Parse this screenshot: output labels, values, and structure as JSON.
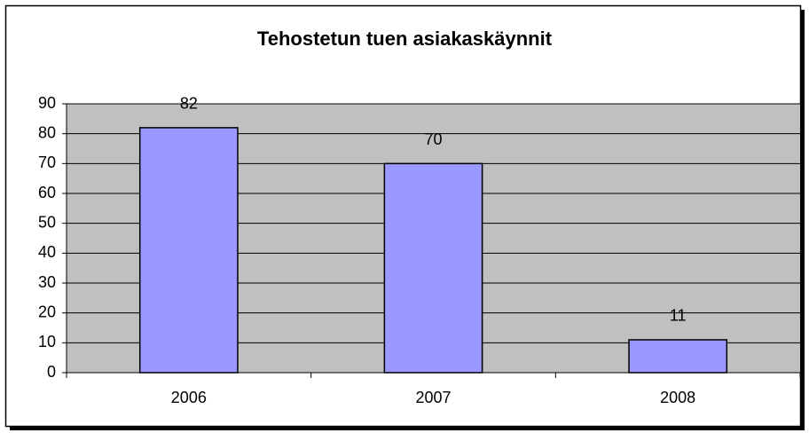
{
  "chart_data": {
    "type": "bar",
    "title": "Tehostetun tuen asiakaskäynnit",
    "categories": [
      "2006",
      "2007",
      "2008"
    ],
    "values": [
      82,
      70,
      11
    ],
    "color": "#9999ff",
    "ylim": [
      0,
      90
    ],
    "yticks": [
      0,
      10,
      20,
      30,
      40,
      50,
      60,
      70,
      80,
      90
    ],
    "grid": true,
    "plot_background": "#c0c0c0"
  }
}
